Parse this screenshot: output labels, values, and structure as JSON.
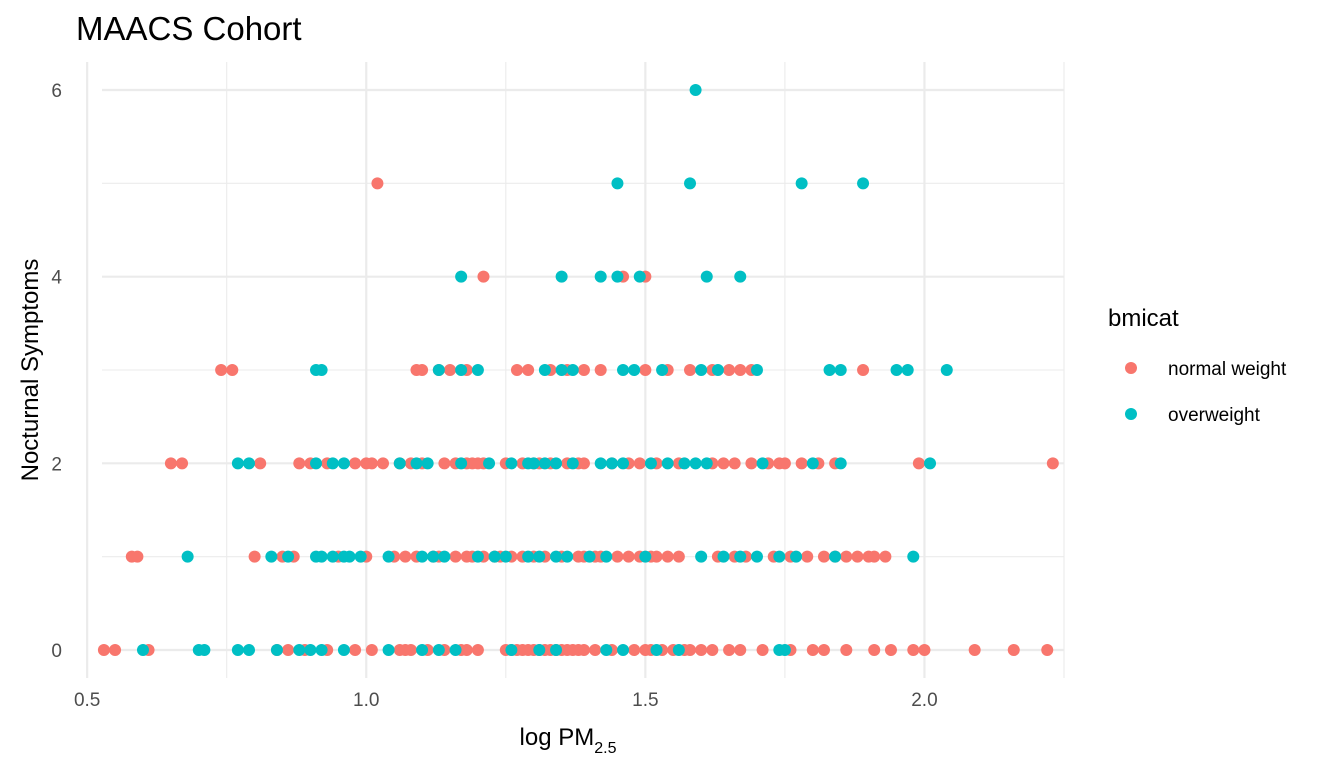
{
  "chart_data": {
    "type": "scatter",
    "title": "MAACS Cohort",
    "xlabel": {
      "main": "log PM",
      "subscript": "2.5"
    },
    "ylabel": "Nocturnal Symptoms",
    "xlim": [
      0.48,
      2.25
    ],
    "ylim": [
      -0.3,
      6.3
    ],
    "x_ticks": [
      0.5,
      1.0,
      1.5,
      2.0
    ],
    "x_tick_labels": [
      "0.5",
      "1.0",
      "1.5",
      "2.0"
    ],
    "y_ticks": [
      0,
      2,
      4,
      6
    ],
    "y_tick_labels": [
      "0",
      "2",
      "4",
      "6"
    ],
    "grid": true,
    "legend": {
      "title": "bmicat",
      "placement": "right",
      "entries": [
        {
          "name": "normal weight",
          "color": "#F8766D"
        },
        {
          "name": "overweight",
          "color": "#00BFC4"
        }
      ]
    },
    "series": [
      {
        "name": "normal weight",
        "color": "#F8766D",
        "points": [
          [
            0.53,
            0
          ],
          [
            0.55,
            0
          ],
          [
            0.61,
            0
          ],
          [
            0.84,
            0
          ],
          [
            0.86,
            0
          ],
          [
            0.89,
            0
          ],
          [
            0.93,
            0
          ],
          [
            0.98,
            0
          ],
          [
            1.01,
            0
          ],
          [
            1.06,
            0
          ],
          [
            1.07,
            0
          ],
          [
            1.08,
            0
          ],
          [
            1.11,
            0
          ],
          [
            1.14,
            0
          ],
          [
            1.17,
            0
          ],
          [
            1.18,
            0
          ],
          [
            1.2,
            0
          ],
          [
            1.25,
            0
          ],
          [
            1.26,
            0
          ],
          [
            1.27,
            0
          ],
          [
            1.28,
            0
          ],
          [
            1.29,
            0
          ],
          [
            1.3,
            0
          ],
          [
            1.31,
            0
          ],
          [
            1.32,
            0
          ],
          [
            1.33,
            0
          ],
          [
            1.34,
            0
          ],
          [
            1.35,
            0
          ],
          [
            1.36,
            0
          ],
          [
            1.37,
            0
          ],
          [
            1.38,
            0
          ],
          [
            1.39,
            0
          ],
          [
            1.41,
            0
          ],
          [
            1.44,
            0
          ],
          [
            1.48,
            0
          ],
          [
            1.5,
            0
          ],
          [
            1.51,
            0
          ],
          [
            1.53,
            0
          ],
          [
            1.55,
            0
          ],
          [
            1.57,
            0
          ],
          [
            1.58,
            0
          ],
          [
            1.6,
            0
          ],
          [
            1.62,
            0
          ],
          [
            1.65,
            0
          ],
          [
            1.67,
            0
          ],
          [
            1.71,
            0
          ],
          [
            1.76,
            0
          ],
          [
            1.8,
            0
          ],
          [
            1.82,
            0
          ],
          [
            1.86,
            0
          ],
          [
            1.91,
            0
          ],
          [
            1.94,
            0
          ],
          [
            1.98,
            0
          ],
          [
            2.0,
            0
          ],
          [
            2.09,
            0
          ],
          [
            2.16,
            0
          ],
          [
            2.22,
            0
          ],
          [
            0.58,
            1
          ],
          [
            0.59,
            1
          ],
          [
            0.8,
            1
          ],
          [
            0.85,
            1
          ],
          [
            0.87,
            1
          ],
          [
            0.95,
            1
          ],
          [
            1.0,
            1
          ],
          [
            1.05,
            1
          ],
          [
            1.07,
            1
          ],
          [
            1.09,
            1
          ],
          [
            1.12,
            1
          ],
          [
            1.13,
            1
          ],
          [
            1.16,
            1
          ],
          [
            1.18,
            1
          ],
          [
            1.19,
            1
          ],
          [
            1.21,
            1
          ],
          [
            1.23,
            1
          ],
          [
            1.24,
            1
          ],
          [
            1.26,
            1
          ],
          [
            1.28,
            1
          ],
          [
            1.3,
            1
          ],
          [
            1.32,
            1
          ],
          [
            1.35,
            1
          ],
          [
            1.38,
            1
          ],
          [
            1.39,
            1
          ],
          [
            1.41,
            1
          ],
          [
            1.42,
            1
          ],
          [
            1.45,
            1
          ],
          [
            1.47,
            1
          ],
          [
            1.49,
            1
          ],
          [
            1.51,
            1
          ],
          [
            1.52,
            1
          ],
          [
            1.54,
            1
          ],
          [
            1.56,
            1
          ],
          [
            1.63,
            1
          ],
          [
            1.66,
            1
          ],
          [
            1.68,
            1
          ],
          [
            1.73,
            1
          ],
          [
            1.76,
            1
          ],
          [
            1.79,
            1
          ],
          [
            1.82,
            1
          ],
          [
            1.84,
            1
          ],
          [
            1.86,
            1
          ],
          [
            1.88,
            1
          ],
          [
            1.9,
            1
          ],
          [
            1.91,
            1
          ],
          [
            1.93,
            1
          ],
          [
            0.65,
            2
          ],
          [
            0.67,
            2
          ],
          [
            0.81,
            2
          ],
          [
            0.88,
            2
          ],
          [
            0.9,
            2
          ],
          [
            0.93,
            2
          ],
          [
            0.98,
            2
          ],
          [
            1.0,
            2
          ],
          [
            1.01,
            2
          ],
          [
            1.03,
            2
          ],
          [
            1.06,
            2
          ],
          [
            1.08,
            2
          ],
          [
            1.1,
            2
          ],
          [
            1.14,
            2
          ],
          [
            1.16,
            2
          ],
          [
            1.18,
            2
          ],
          [
            1.19,
            2
          ],
          [
            1.2,
            2
          ],
          [
            1.21,
            2
          ],
          [
            1.25,
            2
          ],
          [
            1.28,
            2
          ],
          [
            1.3,
            2
          ],
          [
            1.31,
            2
          ],
          [
            1.33,
            2
          ],
          [
            1.36,
            2
          ],
          [
            1.38,
            2
          ],
          [
            1.39,
            2
          ],
          [
            1.44,
            2
          ],
          [
            1.47,
            2
          ],
          [
            1.49,
            2
          ],
          [
            1.52,
            2
          ],
          [
            1.56,
            2
          ],
          [
            1.62,
            2
          ],
          [
            1.64,
            2
          ],
          [
            1.66,
            2
          ],
          [
            1.69,
            2
          ],
          [
            1.72,
            2
          ],
          [
            1.74,
            2
          ],
          [
            1.75,
            2
          ],
          [
            1.78,
            2
          ],
          [
            1.81,
            2
          ],
          [
            1.84,
            2
          ],
          [
            1.99,
            2
          ],
          [
            2.23,
            2
          ],
          [
            0.74,
            3
          ],
          [
            0.76,
            3
          ],
          [
            1.09,
            3
          ],
          [
            1.1,
            3
          ],
          [
            1.13,
            3
          ],
          [
            1.15,
            3
          ],
          [
            1.18,
            3
          ],
          [
            1.27,
            3
          ],
          [
            1.29,
            3
          ],
          [
            1.33,
            3
          ],
          [
            1.36,
            3
          ],
          [
            1.39,
            3
          ],
          [
            1.42,
            3
          ],
          [
            1.5,
            3
          ],
          [
            1.54,
            3
          ],
          [
            1.58,
            3
          ],
          [
            1.62,
            3
          ],
          [
            1.65,
            3
          ],
          [
            1.67,
            3
          ],
          [
            1.69,
            3
          ],
          [
            1.89,
            3
          ],
          [
            1.21,
            4
          ],
          [
            1.46,
            4
          ],
          [
            1.5,
            4
          ],
          [
            1.02,
            5
          ]
        ]
      },
      {
        "name": "overweight",
        "color": "#00BFC4",
        "points": [
          [
            0.6,
            0
          ],
          [
            0.7,
            0
          ],
          [
            0.71,
            0
          ],
          [
            0.77,
            0
          ],
          [
            0.79,
            0
          ],
          [
            0.84,
            0
          ],
          [
            0.88,
            0
          ],
          [
            0.9,
            0
          ],
          [
            0.92,
            0
          ],
          [
            0.96,
            0
          ],
          [
            1.04,
            0
          ],
          [
            1.1,
            0
          ],
          [
            1.13,
            0
          ],
          [
            1.16,
            0
          ],
          [
            1.26,
            0
          ],
          [
            1.31,
            0
          ],
          [
            1.34,
            0
          ],
          [
            1.43,
            0
          ],
          [
            1.46,
            0
          ],
          [
            1.52,
            0
          ],
          [
            1.56,
            0
          ],
          [
            1.74,
            0
          ],
          [
            1.75,
            0
          ],
          [
            0.68,
            1
          ],
          [
            0.83,
            1
          ],
          [
            0.86,
            1
          ],
          [
            0.91,
            1
          ],
          [
            0.92,
            1
          ],
          [
            0.94,
            1
          ],
          [
            0.96,
            1
          ],
          [
            0.97,
            1
          ],
          [
            0.99,
            1
          ],
          [
            1.04,
            1
          ],
          [
            1.1,
            1
          ],
          [
            1.12,
            1
          ],
          [
            1.14,
            1
          ],
          [
            1.2,
            1
          ],
          [
            1.23,
            1
          ],
          [
            1.25,
            1
          ],
          [
            1.29,
            1
          ],
          [
            1.31,
            1
          ],
          [
            1.34,
            1
          ],
          [
            1.36,
            1
          ],
          [
            1.4,
            1
          ],
          [
            1.43,
            1
          ],
          [
            1.5,
            1
          ],
          [
            1.6,
            1
          ],
          [
            1.64,
            1
          ],
          [
            1.67,
            1
          ],
          [
            1.7,
            1
          ],
          [
            1.74,
            1
          ],
          [
            1.77,
            1
          ],
          [
            1.84,
            1
          ],
          [
            1.98,
            1
          ],
          [
            0.77,
            2
          ],
          [
            0.79,
            2
          ],
          [
            0.91,
            2
          ],
          [
            0.94,
            2
          ],
          [
            0.96,
            2
          ],
          [
            1.06,
            2
          ],
          [
            1.09,
            2
          ],
          [
            1.11,
            2
          ],
          [
            1.17,
            2
          ],
          [
            1.22,
            2
          ],
          [
            1.26,
            2
          ],
          [
            1.29,
            2
          ],
          [
            1.3,
            2
          ],
          [
            1.32,
            2
          ],
          [
            1.34,
            2
          ],
          [
            1.37,
            2
          ],
          [
            1.42,
            2
          ],
          [
            1.44,
            2
          ],
          [
            1.46,
            2
          ],
          [
            1.51,
            2
          ],
          [
            1.54,
            2
          ],
          [
            1.57,
            2
          ],
          [
            1.59,
            2
          ],
          [
            1.61,
            2
          ],
          [
            1.71,
            2
          ],
          [
            1.8,
            2
          ],
          [
            1.85,
            2
          ],
          [
            2.01,
            2
          ],
          [
            0.91,
            3
          ],
          [
            0.92,
            3
          ],
          [
            1.13,
            3
          ],
          [
            1.17,
            3
          ],
          [
            1.2,
            3
          ],
          [
            1.32,
            3
          ],
          [
            1.35,
            3
          ],
          [
            1.37,
            3
          ],
          [
            1.46,
            3
          ],
          [
            1.48,
            3
          ],
          [
            1.53,
            3
          ],
          [
            1.6,
            3
          ],
          [
            1.63,
            3
          ],
          [
            1.7,
            3
          ],
          [
            1.83,
            3
          ],
          [
            1.85,
            3
          ],
          [
            1.95,
            3
          ],
          [
            1.97,
            3
          ],
          [
            2.04,
            3
          ],
          [
            1.17,
            4
          ],
          [
            1.35,
            4
          ],
          [
            1.42,
            4
          ],
          [
            1.45,
            4
          ],
          [
            1.49,
            4
          ],
          [
            1.61,
            4
          ],
          [
            1.67,
            4
          ],
          [
            1.45,
            5
          ],
          [
            1.58,
            5
          ],
          [
            1.78,
            5
          ],
          [
            1.89,
            5
          ],
          [
            1.59,
            6
          ]
        ]
      }
    ]
  }
}
